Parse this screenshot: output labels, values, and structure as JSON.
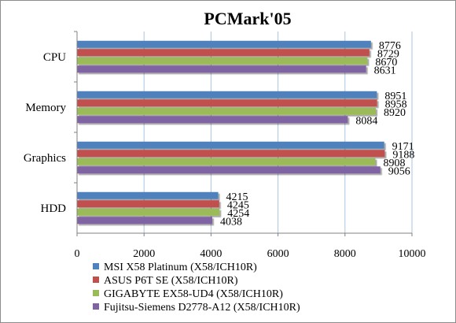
{
  "chart_data": {
    "type": "bar",
    "orientation": "horizontal",
    "title": "PCMark'05",
    "categories": [
      "CPU",
      "Memory",
      "Graphics",
      "HDD"
    ],
    "series": [
      {
        "name": "MSI X58 Platinum (X58/ICH10R)",
        "color": "#4f81bd",
        "values": [
          8776,
          8951,
          9171,
          4215
        ]
      },
      {
        "name": "ASUS P6T SE (X58/ICH10R)",
        "color": "#c0504d",
        "values": [
          8729,
          8958,
          9188,
          4245
        ]
      },
      {
        "name": "GIGABYTE EX58-UD4 (X58/ICH10R)",
        "color": "#9bbb59",
        "values": [
          8670,
          8920,
          8908,
          4254
        ]
      },
      {
        "name": "Fujitsu-Siemens D2778-A12 (X58/ICH10R)",
        "color": "#8064a2",
        "values": [
          8631,
          8084,
          9056,
          4038
        ]
      }
    ],
    "xlim": [
      0,
      10000
    ],
    "xticks": [
      0,
      2000,
      4000,
      6000,
      8000,
      10000
    ],
    "grid": true,
    "legend_position": "bottom"
  }
}
